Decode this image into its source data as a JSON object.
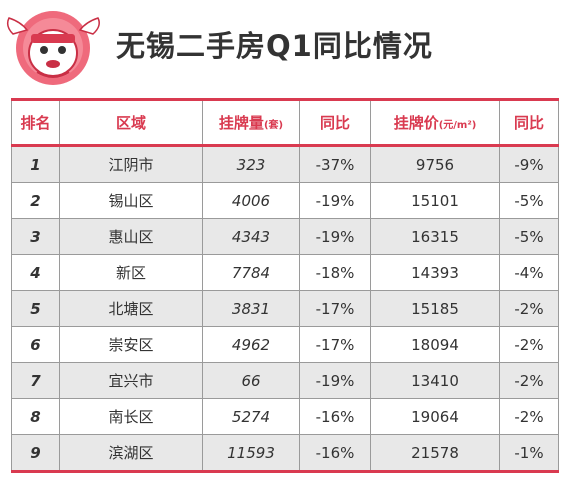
{
  "title": "无锡二手房Q1同比情况",
  "colors": {
    "accent": "#d93a50",
    "stripe": "#e8e8e8",
    "text": "#333333"
  },
  "logo": {
    "icon": "cartoon-sheep-mascot-icon"
  },
  "chart_data": {
    "type": "table",
    "columns": [
      "排名",
      "区域",
      "挂牌量",
      "同比",
      "挂牌价",
      "同比"
    ],
    "column_units": {
      "挂牌量": "(套)",
      "挂牌价": "(元/m²)"
    },
    "rows": [
      {
        "rank": "1",
        "district": "江阴市",
        "listings": "323",
        "listings_yoy": "-37%",
        "price": "9756",
        "price_yoy": "-9%"
      },
      {
        "rank": "2",
        "district": "锡山区",
        "listings": "4006",
        "listings_yoy": "-19%",
        "price": "15101",
        "price_yoy": "-5%"
      },
      {
        "rank": "3",
        "district": "惠山区",
        "listings": "4343",
        "listings_yoy": "-19%",
        "price": "16315",
        "price_yoy": "-5%"
      },
      {
        "rank": "4",
        "district": "新区",
        "listings": "7784",
        "listings_yoy": "-18%",
        "price": "14393",
        "price_yoy": "-4%"
      },
      {
        "rank": "5",
        "district": "北塘区",
        "listings": "3831",
        "listings_yoy": "-17%",
        "price": "15185",
        "price_yoy": "-2%"
      },
      {
        "rank": "6",
        "district": "崇安区",
        "listings": "4962",
        "listings_yoy": "-17%",
        "price": "18094",
        "price_yoy": "-2%"
      },
      {
        "rank": "7",
        "district": "宜兴市",
        "listings": "66",
        "listings_yoy": "-19%",
        "price": "13410",
        "price_yoy": "-2%"
      },
      {
        "rank": "8",
        "district": "南长区",
        "listings": "5274",
        "listings_yoy": "-16%",
        "price": "19064",
        "price_yoy": "-2%"
      },
      {
        "rank": "9",
        "district": "滨湖区",
        "listings": "11593",
        "listings_yoy": "-16%",
        "price": "21578",
        "price_yoy": "-1%"
      }
    ]
  }
}
